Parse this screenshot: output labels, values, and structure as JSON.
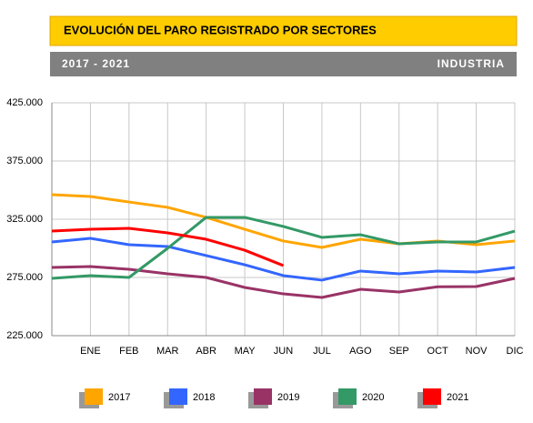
{
  "header": {
    "title": "EVOLUCIÓN DEL PARO REGISTRADO POR SECTORES",
    "period": "2017 - 2021",
    "sector": "INDUSTRIA"
  },
  "chart_data": {
    "type": "line",
    "categories": [
      null,
      "ENE",
      "FEB",
      "MAR",
      "ABR",
      "MAY",
      "JUN",
      "JUL",
      "AGO",
      "SEP",
      "OCT",
      "NOV",
      "DIC"
    ],
    "ylim": [
      225000,
      425000
    ],
    "yticks": [
      {
        "value": 225000,
        "label": "225.000"
      },
      {
        "value": 275000,
        "label": "275.000"
      },
      {
        "value": 325000,
        "label": "325.000"
      },
      {
        "value": 375000,
        "label": "375.000"
      },
      {
        "value": 425000,
        "label": "425.000"
      }
    ],
    "grid": true,
    "series": [
      {
        "name": "2017",
        "color": "#ffa500",
        "values": [
          346100,
          344500,
          339800,
          335200,
          326600,
          316400,
          306300,
          300800,
          307800,
          303900,
          306300,
          303100,
          306300
        ]
      },
      {
        "name": "2018",
        "color": "#3366ff",
        "values": [
          305500,
          308600,
          303100,
          301600,
          293800,
          285900,
          276600,
          272700,
          280500,
          278100,
          280500,
          279700,
          283600
        ]
      },
      {
        "name": "2019",
        "color": "#993366",
        "values": [
          283600,
          284400,
          282000,
          278100,
          275000,
          266400,
          260900,
          257800,
          264800,
          262500,
          267000,
          267200,
          274200
        ]
      },
      {
        "name": "2020",
        "color": "#339966",
        "values": [
          274200,
          276600,
          275000,
          300000,
          326600,
          326600,
          318800,
          309400,
          311700,
          303900,
          305500,
          305500,
          314800
        ]
      },
      {
        "name": "2021",
        "color": "#ff0000",
        "values": [
          314800,
          316400,
          317200,
          313300,
          307800,
          298400,
          285200,
          null,
          null,
          null,
          null,
          null,
          null
        ]
      }
    ]
  }
}
